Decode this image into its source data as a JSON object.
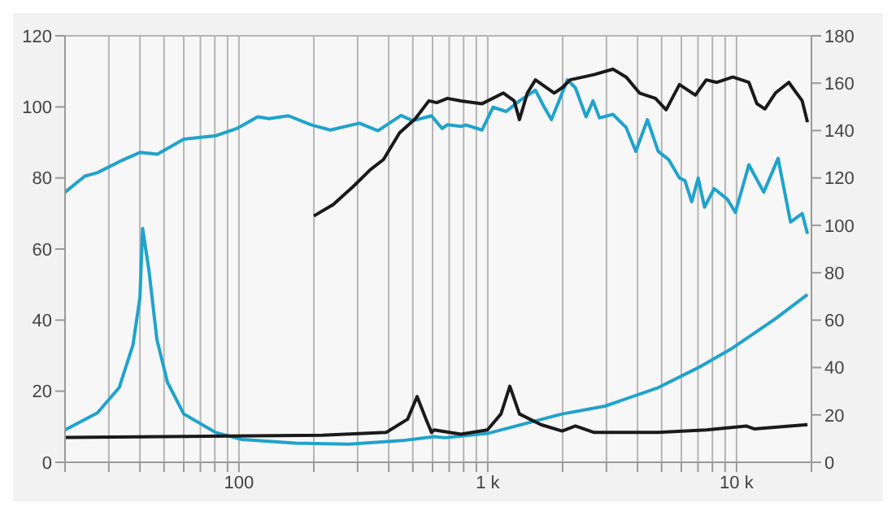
{
  "chart_data": {
    "type": "line",
    "log": "x",
    "grid": true,
    "xlim": [
      20,
      20000
    ],
    "xticks": [
      {
        "value": 20,
        "label": null
      },
      {
        "value": 30,
        "label": null
      },
      {
        "value": 40,
        "label": null
      },
      {
        "value": 50,
        "label": null
      },
      {
        "value": 60,
        "label": null
      },
      {
        "value": 70,
        "label": null
      },
      {
        "value": 80,
        "label": null
      },
      {
        "value": 90,
        "label": null
      },
      {
        "value": 100,
        "label": "100"
      },
      {
        "value": 200,
        "label": null
      },
      {
        "value": 300,
        "label": null
      },
      {
        "value": 400,
        "label": null
      },
      {
        "value": 500,
        "label": null
      },
      {
        "value": 600,
        "label": null
      },
      {
        "value": 700,
        "label": null
      },
      {
        "value": 800,
        "label": null
      },
      {
        "value": 900,
        "label": null
      },
      {
        "value": 1000,
        "label": "1 k"
      },
      {
        "value": 2000,
        "label": null
      },
      {
        "value": 3000,
        "label": null
      },
      {
        "value": 4000,
        "label": null
      },
      {
        "value": 5000,
        "label": null
      },
      {
        "value": 6000,
        "label": null
      },
      {
        "value": 7000,
        "label": null
      },
      {
        "value": 8000,
        "label": null
      },
      {
        "value": 9000,
        "label": null
      },
      {
        "value": 10000,
        "label": "10 k"
      },
      {
        "value": 20000,
        "label": null
      }
    ],
    "ylim": [
      0,
      120
    ],
    "yticks": [
      0,
      20,
      40,
      60,
      80,
      100,
      120
    ],
    "y2lim": [
      0,
      180
    ],
    "y2ticks": [
      0,
      20,
      40,
      60,
      80,
      100,
      120,
      140,
      160,
      180
    ],
    "series": [
      {
        "color": "#1fa3cc",
        "x": [
          20,
          24,
          27,
          34,
          40,
          47,
          60,
          81,
          98,
          119,
          132,
          158,
          196,
          233,
          305,
          362,
          448,
          500,
          594,
          656,
          689,
          780,
          819,
          949,
          1050,
          1186,
          1341,
          1555,
          1675,
          1803,
          2090,
          2250,
          2485,
          2649,
          2812,
          3186,
          3600,
          3936,
          4385,
          4842,
          5346,
          5895,
          6197,
          6604,
          7012,
          7433,
          8128,
          9190,
          9890,
          11210,
          12860,
          14690,
          16480,
          18360,
          19280
        ],
        "values": [
          76,
          80.5,
          81.5,
          85,
          87.2,
          86.7,
          90.9,
          91.9,
          93.9,
          97.2,
          96.7,
          97.5,
          94.9,
          93.5,
          95.4,
          93.3,
          97.6,
          96.1,
          97.5,
          93.9,
          95,
          94.5,
          94.9,
          93.5,
          99.9,
          98.7,
          101.7,
          104.7,
          100.3,
          96.4,
          107.6,
          105.4,
          97.2,
          101.7,
          96.9,
          97.9,
          94.2,
          87.5,
          96.4,
          87.5,
          85.1,
          80,
          79.3,
          73.3,
          80,
          71.8,
          77,
          74,
          70.3,
          83.7,
          76,
          85.5,
          67.6,
          70,
          64.3
        ]
      },
      {
        "color": "#1a1a1a",
        "x": [
          200,
          239,
          290,
          337,
          381,
          442,
          512,
          580,
          624,
          689,
          780,
          949,
          1156,
          1277,
          1341,
          1443,
          1555,
          1849,
          1991,
          2143,
          2677,
          3186,
          3600,
          4072,
          4722,
          5212,
          5895,
          6834,
          7551,
          8337,
          9660,
          11210,
          12070,
          13000,
          14330,
          16220,
          18360,
          19280
        ],
        "values": [
          69.3,
          72.5,
          77.8,
          82.3,
          85.2,
          92.7,
          96.7,
          101.7,
          101.2,
          102.4,
          101.7,
          100.9,
          103.9,
          101.7,
          96.4,
          103.9,
          107.6,
          103.9,
          105.4,
          107.6,
          109.1,
          110.6,
          108.4,
          103.9,
          102.4,
          99.2,
          106.3,
          103.3,
          107.6,
          106.9,
          108.4,
          106.9,
          100.9,
          99.4,
          103.9,
          106.9,
          101.7,
          95.7
        ]
      },
      {
        "color": "#1fa3cc",
        "x": [
          20,
          27,
          33,
          37.5,
          40,
          41,
          43.5,
          46.8,
          51.6,
          60,
          80.5,
          103,
          169,
          277,
          453,
          609,
          673,
          780,
          997,
          1991,
          2957,
          4842,
          7190,
          9660,
          14330,
          19280
        ],
        "values": [
          9.1,
          13.9,
          21,
          33,
          46.4,
          65.8,
          53.9,
          34.5,
          22.5,
          13.6,
          8.4,
          6.4,
          5.4,
          5.1,
          6.1,
          7.2,
          6.9,
          7.4,
          8.1,
          13.6,
          15.8,
          21,
          27,
          32.2,
          40.4,
          47.2
        ]
      },
      {
        "color": "#1a1a1a",
        "x": [
          20,
          216,
          391,
          476,
          520,
          565,
          594,
          609,
          780,
          997,
          1130,
          1227,
          1341,
          1636,
          1991,
          2250,
          2677,
          4842,
          7551,
          10930,
          11770,
          19280
        ],
        "values": [
          7,
          7.6,
          8.4,
          12.1,
          18.5,
          12.1,
          8.4,
          9.1,
          7.9,
          9.1,
          13.6,
          21.4,
          13.6,
          10.6,
          8.8,
          10.2,
          8.4,
          8.4,
          9.1,
          10.2,
          9.4,
          10.6
        ]
      }
    ]
  }
}
